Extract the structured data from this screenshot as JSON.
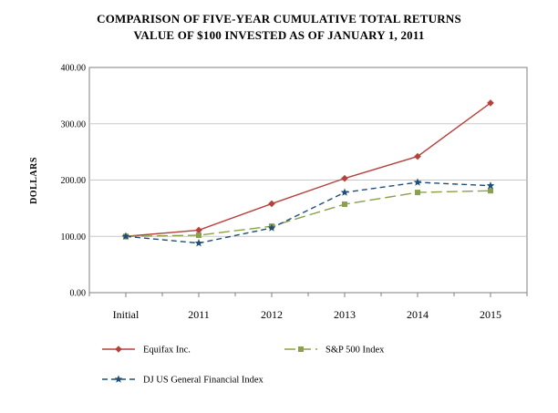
{
  "chart_data": {
    "type": "line",
    "title": "COMPARISON OF FIVE-YEAR CUMULATIVE TOTAL RETURNS",
    "subtitle": "VALUE OF $100 INVESTED AS OF JANUARY 1, 2011",
    "ylabel": "DOLLARS",
    "xlabel": "",
    "categories": [
      "Initial",
      "2011",
      "2012",
      "2013",
      "2014",
      "2015"
    ],
    "ylim": [
      0,
      400
    ],
    "yticks": [
      0,
      100,
      200,
      300,
      400
    ],
    "ytick_labels": [
      "0.00",
      "100.00",
      "200.00",
      "300.00",
      "400.00"
    ],
    "grid": true,
    "legend_position": "bottom",
    "series": [
      {
        "name": "Equifax Inc.",
        "values": [
          100,
          111,
          158,
          203,
          242,
          337
        ],
        "color": "#b5413c",
        "marker": "diamond",
        "dash": "solid"
      },
      {
        "name": "S&P 500 Index",
        "values": [
          100,
          102,
          118,
          157,
          178,
          181
        ],
        "color": "#8aa04a",
        "marker": "square",
        "dash": "long-dash"
      },
      {
        "name": "DJ US General Financial Index",
        "values": [
          100,
          88,
          115,
          178,
          196,
          190
        ],
        "color": "#1f4e79",
        "marker": "star",
        "dash": "dash"
      }
    ]
  }
}
